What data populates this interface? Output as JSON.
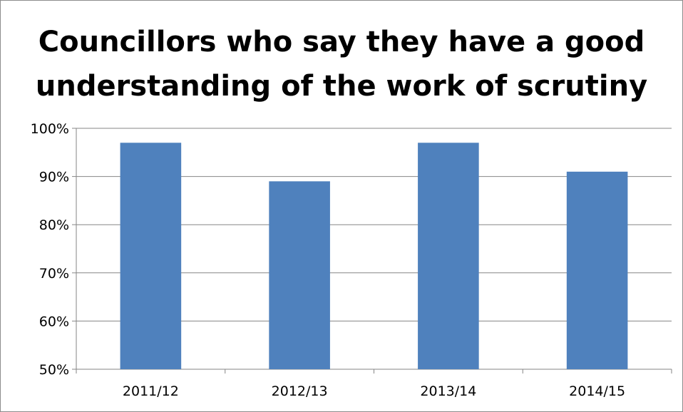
{
  "chart_data": {
    "type": "bar",
    "title": [
      "Councillors who say they have a good",
      "understanding of the work of scrutiny"
    ],
    "categories": [
      "2011/12",
      "2012/13",
      "2013/14",
      "2014/15"
    ],
    "values": [
      97,
      89,
      97,
      91
    ],
    "y_unit": "%",
    "ylim": [
      50,
      100
    ],
    "y_ticks": [
      50,
      60,
      70,
      80,
      90,
      100
    ],
    "y_tick_labels": [
      "50%",
      "60%",
      "70%",
      "80%",
      "90%",
      "100%"
    ],
    "grid": true,
    "legend": "none",
    "bar_color": "#4f81bd",
    "grid_color": "#868686"
  }
}
